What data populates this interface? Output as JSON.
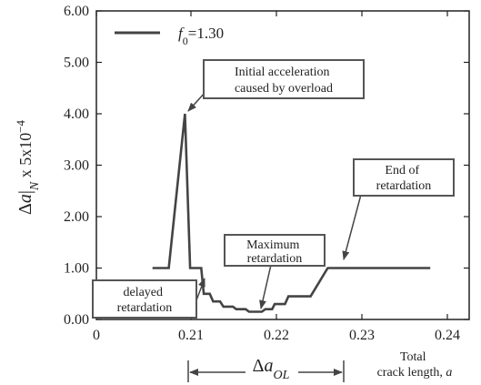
{
  "chart_data": {
    "type": "line",
    "x_ticks": [
      "0",
      "0.21",
      "0.22",
      "0.23",
      "0.24"
    ],
    "y_ticks": [
      "0.00",
      "1.00",
      "2.00",
      "3.00",
      "4.00",
      "5.00",
      "6.00"
    ],
    "ylim": [
      0,
      6
    ],
    "grid": false,
    "legend_position": "top-left",
    "ylabel": {
      "delta": "Δ",
      "a": "a",
      "sub": "N",
      "rest": " x 5x10",
      "exp": "−4"
    },
    "xlabel": {
      "line1": "Total",
      "line2": "crack length, ",
      "var": "a"
    },
    "series": [
      {
        "name": {
          "var": "f",
          "sub": "0",
          "rest": "=1.30"
        },
        "color": "#444444",
        "points": [
          [
            0.2055,
            1.0
          ],
          [
            0.2074,
            1.0
          ],
          [
            0.2093,
            4.0
          ],
          [
            0.2099,
            1.0
          ],
          [
            0.2112,
            1.0
          ],
          [
            0.2115,
            0.5
          ],
          [
            0.2122,
            0.5
          ],
          [
            0.2126,
            0.35
          ],
          [
            0.2134,
            0.35
          ],
          [
            0.2138,
            0.25
          ],
          [
            0.2149,
            0.25
          ],
          [
            0.2153,
            0.2
          ],
          [
            0.2164,
            0.2
          ],
          [
            0.2168,
            0.15
          ],
          [
            0.2183,
            0.15
          ],
          [
            0.2187,
            0.2
          ],
          [
            0.2195,
            0.2
          ],
          [
            0.2198,
            0.3
          ],
          [
            0.221,
            0.3
          ],
          [
            0.2214,
            0.45
          ],
          [
            0.224,
            0.45
          ],
          [
            0.226,
            1.0
          ],
          [
            0.238,
            1.0
          ]
        ]
      }
    ],
    "annotations": [
      {
        "lines": [
          "Initial acceleration",
          "caused by overload"
        ]
      },
      {
        "lines": [
          "End of",
          "retardation"
        ]
      },
      {
        "lines": [
          "Maximum",
          "retardation"
        ]
      },
      {
        "lines": [
          "delayed",
          "retardation"
        ]
      }
    ],
    "dimension_label": {
      "delta": "Δ",
      "a": "a",
      "sub": "OL"
    }
  }
}
